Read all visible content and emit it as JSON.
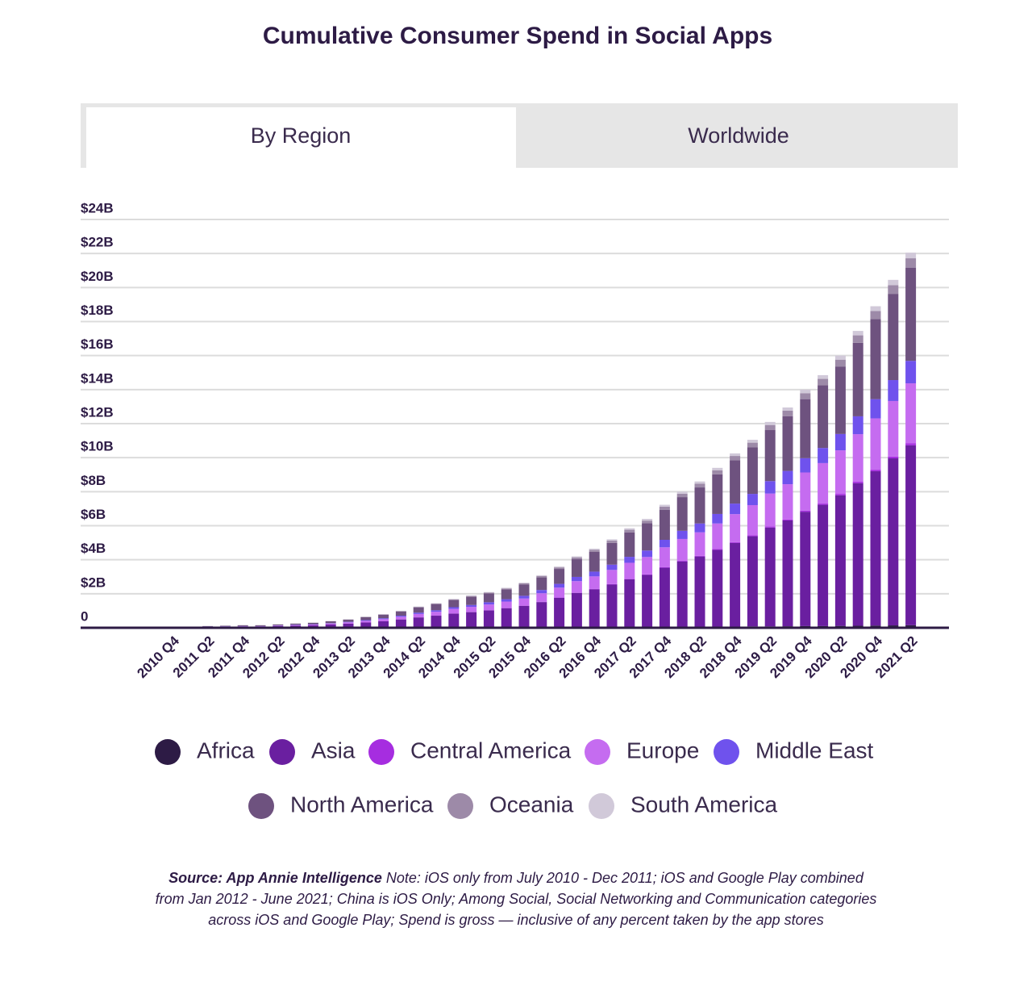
{
  "tabs": [
    "By Region",
    "Worldwide"
  ],
  "chart_data": {
    "type": "stacked-bar",
    "title": "Cumulative Consumer Spend in Social Apps",
    "source": "Source: App Annie Intelligence",
    "note": "Note: iOS only from July 2010 - Dec 2011; iOS and Google Play combined from Jan 2012 - June 2021; China is iOS Only; Among Social, Social Networking and Communication categories across iOS and Google Play; Spend is gross — inclusive of any percent taken by the app stores",
    "categories": [
      "2010 Q4",
      null,
      "2011 Q2",
      null,
      "2011 Q4",
      null,
      "2012 Q2",
      null,
      "2012 Q4",
      null,
      "2013 Q2",
      null,
      "2013 Q4",
      null,
      "2014 Q2",
      null,
      "2014 Q4",
      null,
      "2015 Q2",
      null,
      "2015 Q4",
      null,
      "2016 Q2",
      null,
      "2016 Q4",
      null,
      "2017 Q2",
      null,
      "2017 Q4",
      null,
      "2018 Q2",
      null,
      "2018 Q4",
      null,
      "2019 Q2",
      null,
      "2019 Q4",
      null,
      "2020 Q2",
      null,
      "2020 Q4",
      null,
      "2021 Q2"
    ],
    "ylim": [
      0,
      24
    ],
    "yticks": [
      0,
      {
        "value": 2,
        "label": "$2B"
      },
      {
        "value": 4,
        "label": "$4B"
      },
      {
        "value": 6,
        "label": "$6B"
      },
      {
        "value": 8,
        "label": "$8B"
      },
      {
        "value": 10,
        "label": "$10B"
      },
      {
        "value": 12,
        "label": "$12B"
      },
      {
        "value": 14,
        "label": "$14B"
      },
      {
        "value": 16,
        "label": "$16B"
      },
      {
        "value": 18,
        "label": "$18B"
      },
      {
        "value": 20,
        "label": "$20B"
      },
      {
        "value": 22,
        "label": "$22B"
      },
      {
        "value": 24,
        "label": "$24B"
      }
    ],
    "grid": true,
    "series": [
      {
        "name": "Africa",
        "color": "#2d1b45",
        "values": [
          0,
          0,
          0,
          0,
          0,
          0,
          0,
          0,
          0,
          0,
          0,
          0,
          0,
          0.01,
          0.01,
          0.01,
          0.01,
          0.01,
          0.01,
          0.02,
          0.02,
          0.02,
          0.03,
          0.03,
          0.03,
          0.04,
          0.04,
          0.04,
          0.05,
          0.06,
          0.06,
          0.07,
          0.07,
          0.08,
          0.08,
          0.09,
          0.1,
          0.1,
          0.11,
          0.12,
          0.13,
          0.14,
          0.15
        ]
      },
      {
        "name": "Asia",
        "color": "#6a1fa0",
        "values": [
          0.01,
          0.02,
          0.05,
          0.06,
          0.07,
          0.07,
          0.1,
          0.12,
          0.14,
          0.19,
          0.24,
          0.31,
          0.38,
          0.48,
          0.6,
          0.7,
          0.82,
          0.91,
          1.01,
          1.13,
          1.27,
          1.49,
          1.73,
          2.02,
          2.23,
          2.5,
          2.81,
          3.07,
          3.48,
          3.84,
          4.13,
          4.51,
          4.92,
          5.3,
          5.81,
          6.22,
          6.72,
          7.13,
          7.68,
          8.38,
          9.07,
          9.82,
          10.58
        ]
      },
      {
        "name": "Central America",
        "color": "#a62de0",
        "values": [
          0,
          0,
          0,
          0,
          0,
          0,
          0,
          0,
          0,
          0,
          0,
          0,
          0,
          0,
          0,
          0,
          0.01,
          0.01,
          0.01,
          0.01,
          0.01,
          0.02,
          0.02,
          0.02,
          0.02,
          0.03,
          0.03,
          0.03,
          0.04,
          0.04,
          0.04,
          0.05,
          0.05,
          0.06,
          0.06,
          0.06,
          0.07,
          0.07,
          0.08,
          0.09,
          0.09,
          0.1,
          0.11
        ]
      },
      {
        "name": "Europe",
        "color": "#c56cf0",
        "values": [
          0,
          0.01,
          0.02,
          0.02,
          0.02,
          0.02,
          0.03,
          0.04,
          0.05,
          0.06,
          0.08,
          0.1,
          0.13,
          0.16,
          0.2,
          0.23,
          0.27,
          0.3,
          0.34,
          0.38,
          0.42,
          0.5,
          0.58,
          0.67,
          0.74,
          0.83,
          0.94,
          1.02,
          1.16,
          1.28,
          1.38,
          1.5,
          1.64,
          1.77,
          1.94,
          2.07,
          2.24,
          2.38,
          2.56,
          2.79,
          3.02,
          3.27,
          3.53
        ]
      },
      {
        "name": "Middle East",
        "color": "#6f52ed",
        "values": [
          0,
          0,
          0.01,
          0.01,
          0.01,
          0.01,
          0.01,
          0.02,
          0.02,
          0.02,
          0.03,
          0.04,
          0.05,
          0.06,
          0.08,
          0.09,
          0.1,
          0.11,
          0.13,
          0.14,
          0.16,
          0.19,
          0.22,
          0.25,
          0.28,
          0.31,
          0.35,
          0.38,
          0.44,
          0.48,
          0.52,
          0.56,
          0.62,
          0.66,
          0.73,
          0.78,
          0.84,
          0.89,
          0.96,
          1.05,
          1.13,
          1.23,
          1.32
        ]
      },
      {
        "name": "North America",
        "color": "#6e527f",
        "values": [
          0.01,
          0.02,
          0.02,
          0.03,
          0.05,
          0.05,
          0.05,
          0.06,
          0.08,
          0.11,
          0.13,
          0.17,
          0.21,
          0.24,
          0.31,
          0.36,
          0.42,
          0.48,
          0.52,
          0.57,
          0.66,
          0.74,
          0.88,
          1.04,
          1.16,
          1.28,
          1.44,
          1.6,
          1.77,
          1.98,
          2.12,
          2.33,
          2.54,
          2.73,
          3.0,
          3.22,
          3.47,
          3.69,
          3.97,
          4.32,
          4.71,
          5.07,
          5.48
        ]
      },
      {
        "name": "Oceania",
        "color": "#9d8aa8",
        "values": [
          0,
          0,
          0,
          0,
          0,
          0,
          0.01,
          0.01,
          0.01,
          0.01,
          0.01,
          0.02,
          0.02,
          0.03,
          0.03,
          0.04,
          0.04,
          0.05,
          0.05,
          0.06,
          0.07,
          0.08,
          0.09,
          0.11,
          0.12,
          0.13,
          0.15,
          0.16,
          0.18,
          0.2,
          0.22,
          0.24,
          0.26,
          0.28,
          0.3,
          0.32,
          0.35,
          0.37,
          0.4,
          0.44,
          0.47,
          0.51,
          0.55
        ]
      },
      {
        "name": "South America",
        "color": "#d1c9d9",
        "values": [
          0,
          0,
          0,
          0,
          0,
          0,
          0,
          0,
          0,
          0.01,
          0.01,
          0.01,
          0.01,
          0.02,
          0.02,
          0.02,
          0.03,
          0.03,
          0.03,
          0.04,
          0.04,
          0.05,
          0.05,
          0.06,
          0.07,
          0.08,
          0.09,
          0.1,
          0.11,
          0.12,
          0.13,
          0.14,
          0.15,
          0.17,
          0.18,
          0.19,
          0.21,
          0.22,
          0.24,
          0.26,
          0.28,
          0.31,
          0.33
        ]
      }
    ]
  }
}
